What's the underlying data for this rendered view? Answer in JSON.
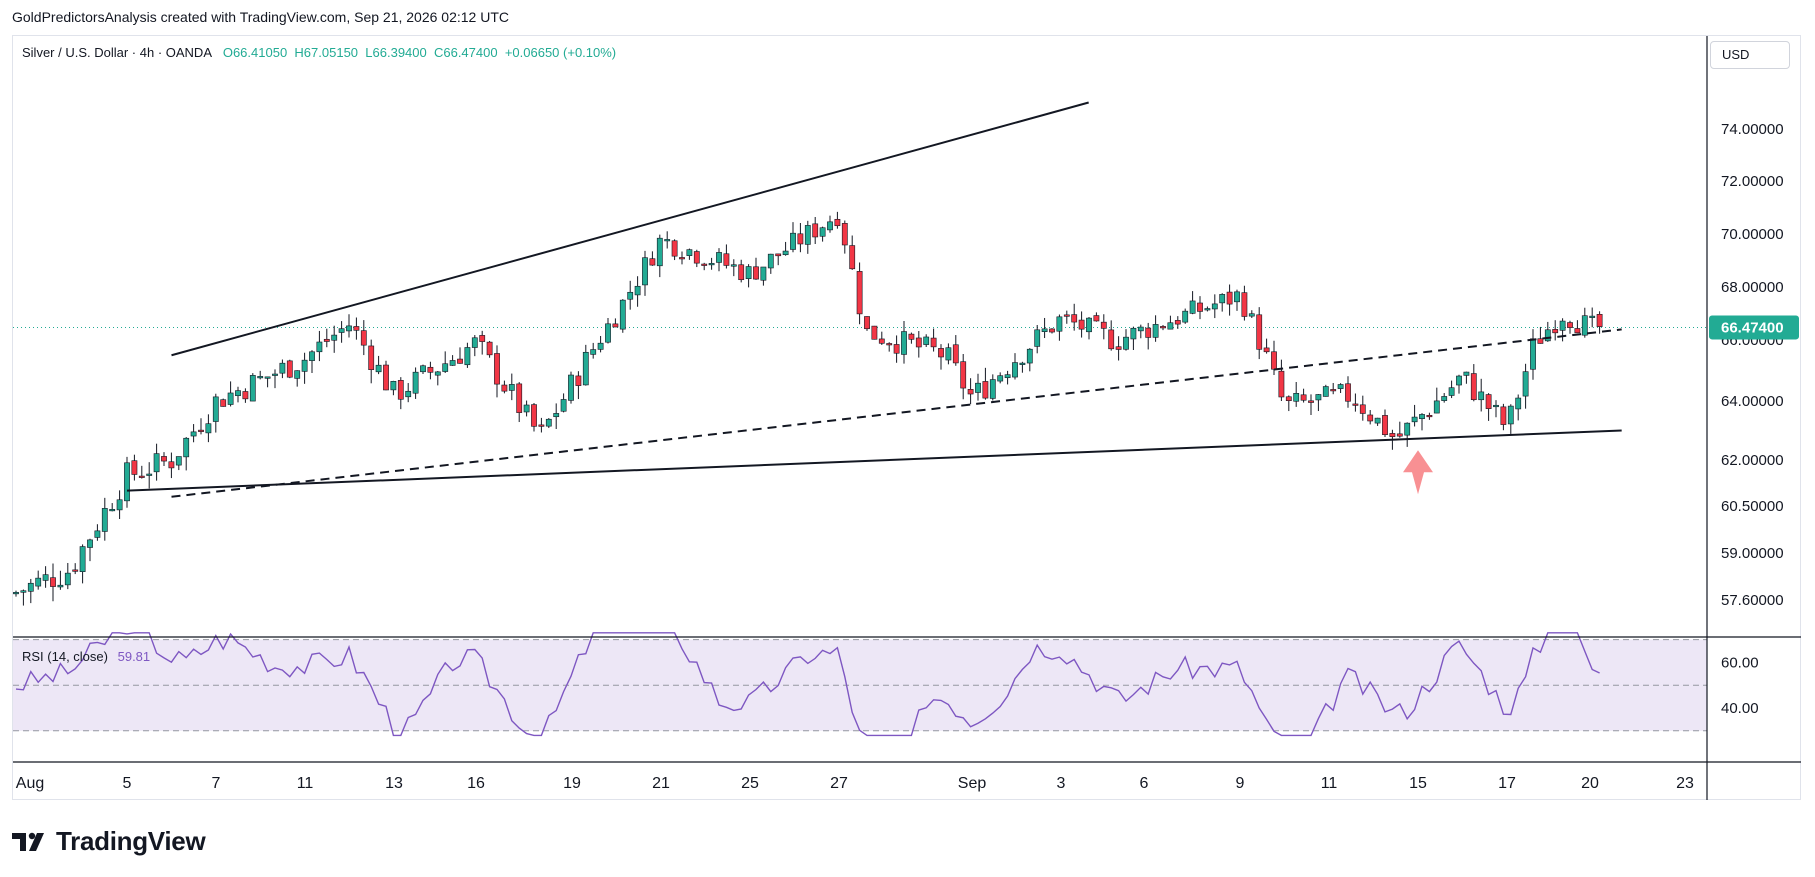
{
  "header": {
    "text": "GoldPredictorsAnalysis created with TradingView.com, Sep 21, 2026 02:12 UTC"
  },
  "legend": {
    "symbol": "Silver / U.S. Dollar · 4h · OANDA",
    "open": "O66.41050",
    "high": "H67.05150",
    "low": "L66.39400",
    "close": "C66.47400",
    "change": "+0.06650 (+0.10%)"
  },
  "currency": "USD",
  "rsi_legend": {
    "label": "RSI (14, close)",
    "value": "59.81"
  },
  "logo": {
    "text": "TradingView"
  },
  "colors": {
    "up": "#22ab94",
    "down": "#f23645",
    "rsi": "#7e57c2",
    "rsi_band": "#ede7f6",
    "price_badge": "#22ab94"
  },
  "chart_data": [
    {
      "type": "candlestick",
      "title": "Silver / U.S. Dollar · 4h · OANDA",
      "y_ticks": [
        "74.00000",
        "72.00000",
        "70.00000",
        "68.00000",
        "66.00000",
        "64.00000",
        "62.00000",
        "60.50000",
        "59.00000",
        "57.60000"
      ],
      "x_ticks": [
        "Aug",
        "5",
        "7",
        "11",
        "13",
        "16",
        "19",
        "21",
        "25",
        "27",
        "Sep",
        "3",
        "6",
        "9",
        "11",
        "15",
        "17",
        "20",
        "23"
      ],
      "current_price": "66.47400",
      "approx_close_path": [
        {
          "x": "Aug 1",
          "y": 57.8
        },
        {
          "x": "Aug 3",
          "y": 58.5
        },
        {
          "x": "Aug 5",
          "y": 61.5
        },
        {
          "x": "Aug 6",
          "y": 62.0
        },
        {
          "x": "Aug 7",
          "y": 64.0
        },
        {
          "x": "Aug 11",
          "y": 65.4
        },
        {
          "x": "Aug 12",
          "y": 66.6
        },
        {
          "x": "Aug 13",
          "y": 64.2
        },
        {
          "x": "Aug 16",
          "y": 65.9
        },
        {
          "x": "Aug 18",
          "y": 62.8
        },
        {
          "x": "Aug 20",
          "y": 67.0
        },
        {
          "x": "Aug 21",
          "y": 69.8
        },
        {
          "x": "Aug 25",
          "y": 68.5
        },
        {
          "x": "Aug 27",
          "y": 70.8
        },
        {
          "x": "Aug 28",
          "y": 66.3
        },
        {
          "x": "Aug 31",
          "y": 65.5
        },
        {
          "x": "Sep 1",
          "y": 64.1
        },
        {
          "x": "Sep 3",
          "y": 66.8
        },
        {
          "x": "Sep 5",
          "y": 66.0
        },
        {
          "x": "Sep 9",
          "y": 67.7
        },
        {
          "x": "Sep 10",
          "y": 63.8
        },
        {
          "x": "Sep 12",
          "y": 64.2
        },
        {
          "x": "Sep 14",
          "y": 62.7
        },
        {
          "x": "Sep 16",
          "y": 64.8
        },
        {
          "x": "Sep 17",
          "y": 63.1
        },
        {
          "x": "Sep 18",
          "y": 65.9
        },
        {
          "x": "Sep 19",
          "y": 67.0
        },
        {
          "x": "Sep 20",
          "y": 66.47
        }
      ],
      "trendlines": [
        {
          "style": "solid",
          "from": {
            "x": "Aug 6",
            "y": 65.5
          },
          "to": {
            "x": "Sep 4",
            "y": 75.0
          }
        },
        {
          "style": "solid",
          "from": {
            "x": "Aug 5",
            "y": 61.0
          },
          "to": {
            "x": "Sep 21",
            "y": 63.0
          }
        },
        {
          "style": "dashed",
          "from": {
            "x": "Aug 6",
            "y": 60.8
          },
          "to": {
            "x": "Sep 21",
            "y": 66.4
          }
        }
      ],
      "annotations": [
        {
          "type": "up-arrow",
          "x": "Sep 15",
          "y": 61.6
        }
      ]
    },
    {
      "type": "line",
      "title": "RSI (14, close)",
      "y_ticks": [
        "60.00",
        "40.00"
      ],
      "bands": [
        70,
        50,
        30
      ],
      "last_value": 59.81
    }
  ]
}
